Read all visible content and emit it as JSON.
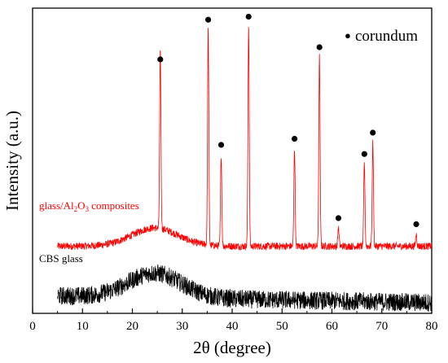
{
  "chart_data": {
    "type": "line",
    "title": "",
    "xlabel": "2θ (degree)",
    "ylabel": "Intensity (a.u.)",
    "xlim": [
      0,
      80
    ],
    "xticks": [
      0,
      10,
      20,
      30,
      40,
      50,
      60,
      70,
      80
    ],
    "y_ticks_shown": false,
    "grid": false,
    "legend": {
      "placement": "top-right",
      "marker": "●",
      "label": "corundum"
    },
    "series": [
      {
        "name_parts": [
          "glass/Al",
          "2",
          "O",
          "3",
          " composites"
        ],
        "color": "#ff0000",
        "x_range": [
          5,
          80
        ],
        "hump": {
          "center": 24.5,
          "width": 6.5,
          "height": 0.06
        },
        "baseline": 0.22,
        "noise": 0.012,
        "peaks": [
          {
            "x": 25.6,
            "y": 0.8
          },
          {
            "x": 35.2,
            "y": 0.93
          },
          {
            "x": 37.8,
            "y": 0.52
          },
          {
            "x": 43.3,
            "y": 0.94
          },
          {
            "x": 52.5,
            "y": 0.54
          },
          {
            "x": 57.5,
            "y": 0.84
          },
          {
            "x": 61.3,
            "y": 0.28
          },
          {
            "x": 66.5,
            "y": 0.49
          },
          {
            "x": 68.2,
            "y": 0.56
          },
          {
            "x": 76.9,
            "y": 0.26
          }
        ],
        "corundum_markers": [
          25.6,
          35.2,
          37.8,
          43.3,
          52.5,
          57.5,
          61.3,
          66.5,
          68.2,
          76.9
        ]
      },
      {
        "name_parts": [
          "CBS glass"
        ],
        "color": "#000000",
        "x_range": [
          5,
          80
        ],
        "hump": {
          "center": 24.5,
          "width": 7.5,
          "height": 0.08
        },
        "baseline": 0.05,
        "noise": 0.03,
        "peaks": []
      }
    ]
  }
}
